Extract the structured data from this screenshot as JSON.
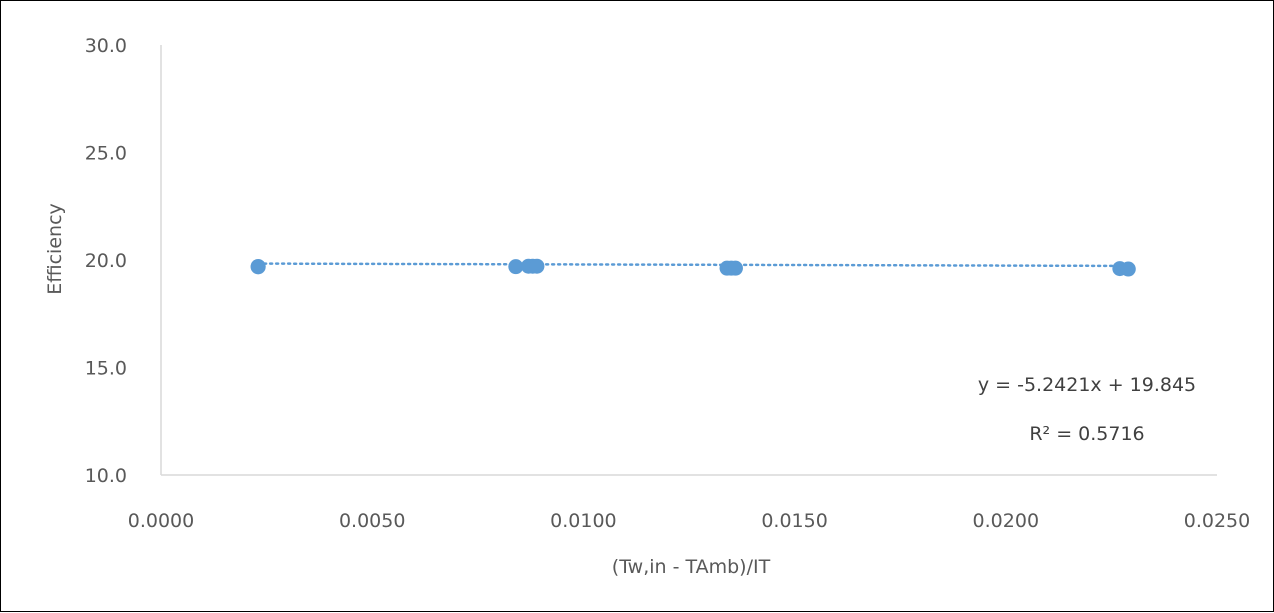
{
  "chart_data": {
    "type": "scatter",
    "title": "",
    "xlabel": "(Tw,in - TAmb)/IT",
    "ylabel": "Efficiency",
    "xlim": [
      0.0,
      0.025
    ],
    "ylim": [
      10.0,
      30.0
    ],
    "x_ticks": [
      "0.0000",
      "0.0050",
      "0.0100",
      "0.0150",
      "0.0200",
      "0.0250"
    ],
    "y_ticks": [
      "10.0",
      "15.0",
      "20.0",
      "25.0",
      "30.0"
    ],
    "grid": false,
    "legend": "none",
    "series": [
      {
        "color": "#5b9bd5",
        "points": [
          {
            "x": 0.0023,
            "y": 19.7
          },
          {
            "x": 0.0023,
            "y": 19.68
          },
          {
            "x": 0.0084,
            "y": 19.69
          },
          {
            "x": 0.0087,
            "y": 19.71
          },
          {
            "x": 0.0088,
            "y": 19.71
          },
          {
            "x": 0.0089,
            "y": 19.71
          },
          {
            "x": 0.0134,
            "y": 19.62
          },
          {
            "x": 0.0135,
            "y": 19.62
          },
          {
            "x": 0.0136,
            "y": 19.62
          },
          {
            "x": 0.0227,
            "y": 19.6
          },
          {
            "x": 0.0229,
            "y": 19.58
          }
        ]
      }
    ],
    "trendline": {
      "type": "linear",
      "slope": -5.2421,
      "intercept": 19.845,
      "color": "#5b9bd5",
      "style": "dotted"
    },
    "annotations": {
      "equation": "y = -5.2421x + 19.845",
      "r_squared": "R² = 0.5716"
    }
  }
}
